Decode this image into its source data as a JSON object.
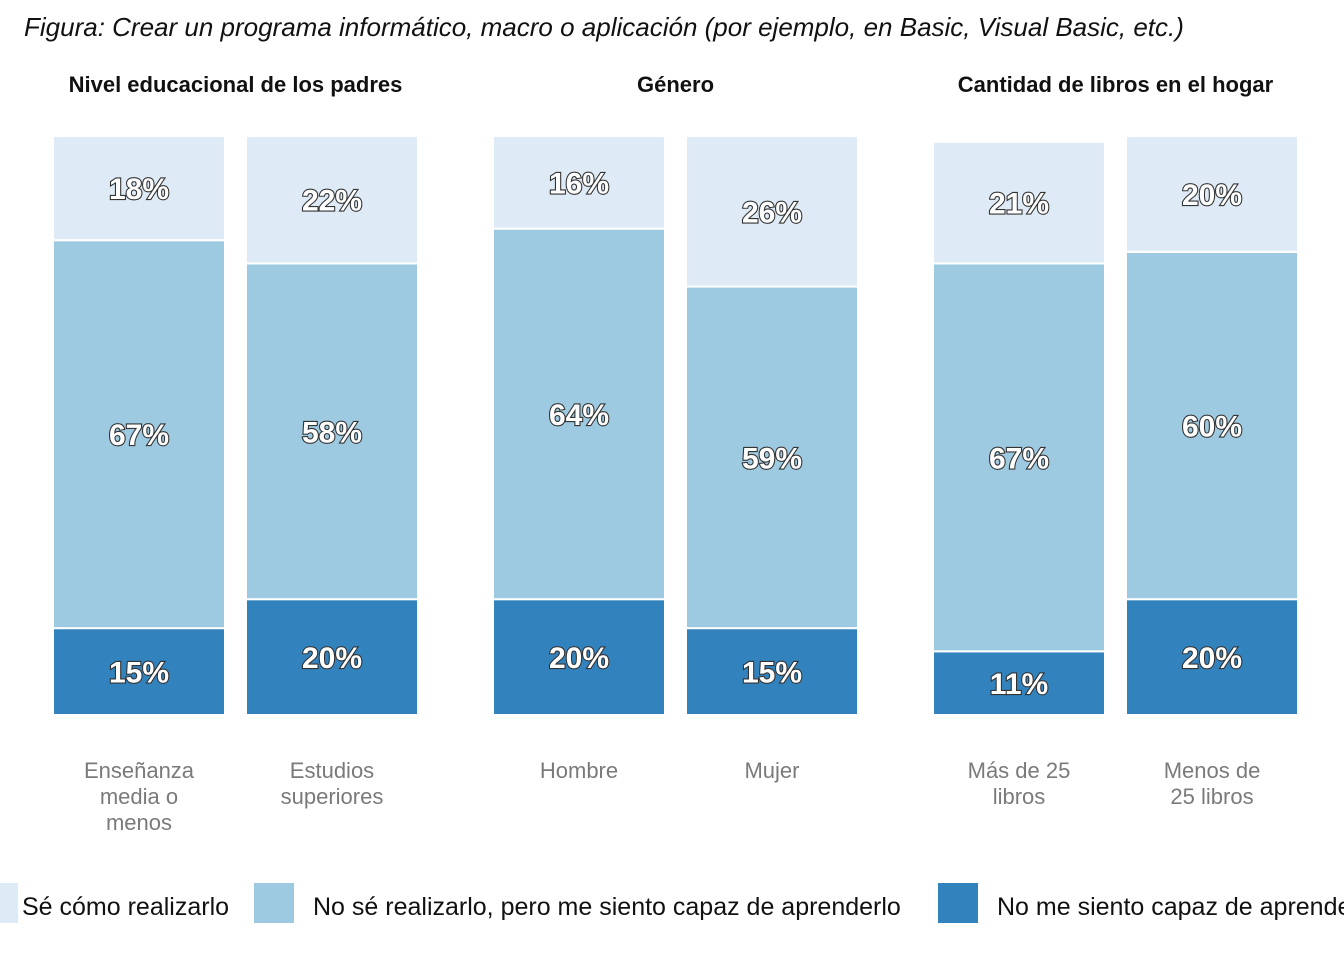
{
  "figure_title": "Figura: Crear un programa informático, macro o aplicación (por ejemplo, en Basic, Visual Basic, etc.)",
  "chart_data": {
    "type": "bar",
    "stacked": true,
    "ylim": [
      0,
      100
    ],
    "grid": false,
    "legend_position": "bottom",
    "segment_order": [
      "No me siento capaz de aprenderlo",
      "No sé realizarlo, pero me siento capaz de aprenderlo",
      "Sé cómo realizarlo"
    ],
    "legend": [
      {
        "name": "Sé cómo realizarlo",
        "color": "#deebf7"
      },
      {
        "name": "No sé realizarlo, pero me siento capaz de aprenderlo",
        "color": "#9ecae1"
      },
      {
        "name": "No me siento capaz de aprenderlo",
        "color": "#3182bd"
      }
    ],
    "panels": [
      {
        "title": "Nivel educacional de los padres",
        "categories": [
          [
            "Enseñanza",
            "media o",
            "menos"
          ],
          [
            "Estudios",
            "superiores"
          ]
        ],
        "series": [
          {
            "name": "No me siento capaz de aprenderlo",
            "values": [
              15,
              20
            ],
            "labels": [
              "15%",
              "20%"
            ]
          },
          {
            "name": "No sé realizarlo, pero me siento capaz de aprenderlo",
            "values": [
              67,
              58
            ],
            "labels": [
              "67%",
              "58%"
            ]
          },
          {
            "name": "Sé cómo realizarlo",
            "values": [
              18,
              22
            ],
            "labels": [
              "18%",
              "22%"
            ]
          }
        ]
      },
      {
        "title": "Género",
        "categories": [
          [
            "Hombre"
          ],
          [
            "Mujer"
          ]
        ],
        "series": [
          {
            "name": "No me siento capaz de aprenderlo",
            "values": [
              20,
              15
            ],
            "labels": [
              "20%",
              "15%"
            ]
          },
          {
            "name": "No sé realizarlo, pero me siento capaz de aprenderlo",
            "values": [
              64,
              59
            ],
            "labels": [
              "64%",
              "59%"
            ]
          },
          {
            "name": "Sé cómo realizarlo",
            "values": [
              16,
              26
            ],
            "labels": [
              "16%",
              "26%"
            ]
          }
        ]
      },
      {
        "title": "Cantidad de libros en el hogar",
        "categories": [
          [
            "Más de 25",
            "libros"
          ],
          [
            "Menos de",
            "25 libros"
          ]
        ],
        "series": [
          {
            "name": "No me siento capaz de aprenderlo",
            "values": [
              11,
              20
            ],
            "labels": [
              "11%",
              "20%"
            ]
          },
          {
            "name": "No sé realizarlo, pero me siento capaz de aprenderlo",
            "values": [
              67,
              60
            ],
            "labels": [
              "67%",
              "60%"
            ]
          },
          {
            "name": "Sé cómo realizarlo",
            "values": [
              21,
              20
            ],
            "labels": [
              "21%",
              "20%"
            ]
          }
        ]
      }
    ]
  }
}
